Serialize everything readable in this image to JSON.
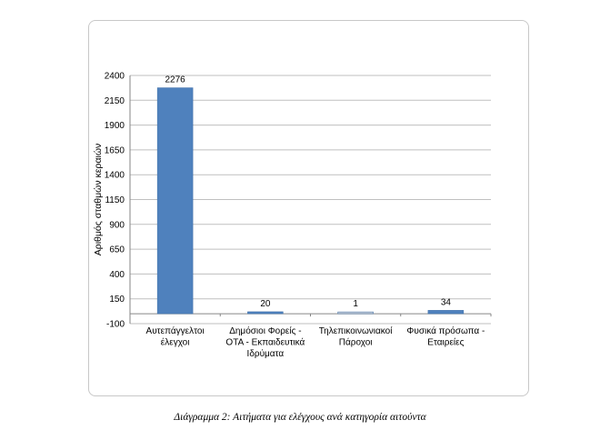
{
  "chart_data": {
    "type": "bar",
    "title": "",
    "xlabel": "",
    "ylabel": "Αριθμός σταθμών κεραιών",
    "categories": [
      [
        "Αυτεπάγγελτοι",
        "έλεγχοι"
      ],
      [
        "Δημόσιοι Φορείς -",
        "ΟΤΑ - Εκπαιδευτικά",
        "Ιδρύματα"
      ],
      [
        "Τηλεπικοινωνιακοί",
        "Πάροχοι"
      ],
      [
        "Φυσικά πρόσωπα -",
        "Εταιρείες"
      ]
    ],
    "values": [
      2276,
      20,
      1,
      34
    ],
    "data_labels": [
      "2276",
      "20",
      "1",
      "34"
    ],
    "yticks": [
      "-100",
      "150",
      "400",
      "650",
      "900",
      "1150",
      "1400",
      "1650",
      "1900",
      "2150",
      "2400"
    ],
    "ylim": [
      -100,
      2400
    ],
    "grid": true,
    "bar_color": "#4f81bd"
  },
  "caption": "Διάγραμμα 2: Αιτήματα για ελέγχους ανά κατηγορία αιτούντα"
}
